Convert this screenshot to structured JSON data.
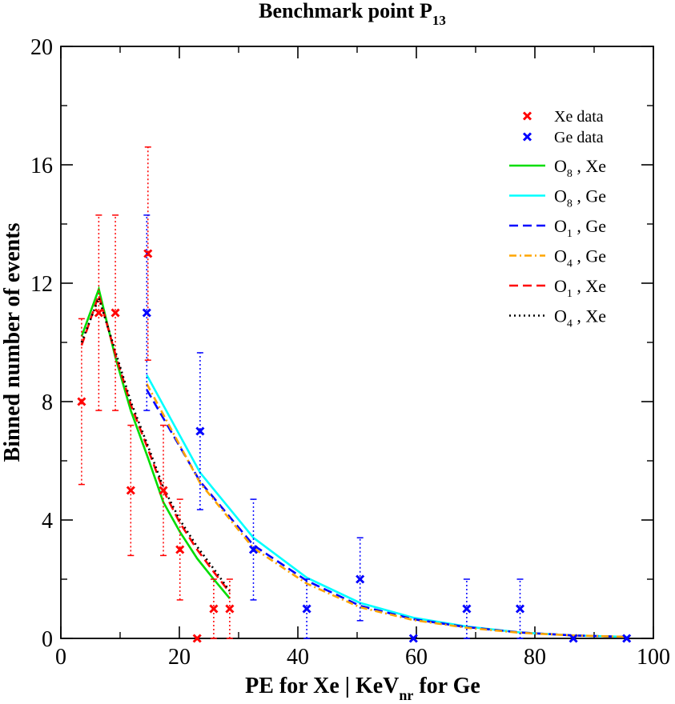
{
  "chart_data": {
    "type": "line",
    "title": {
      "main": "Benchmark point P",
      "sub": "13"
    },
    "xlabel": {
      "main": "PE for Xe | KeV",
      "sub": "nr",
      "tail": " for Ge"
    },
    "ylabel": "Binned number of events",
    "xlim": [
      0,
      100
    ],
    "ylim": [
      0,
      20
    ],
    "xticks": [
      0,
      20,
      40,
      60,
      80,
      100
    ],
    "yticks": [
      0,
      4,
      8,
      12,
      16,
      20
    ],
    "xtick_labels": [
      "0",
      "20",
      "40",
      "60",
      "80",
      "100"
    ],
    "ytick_labels": [
      "0",
      "4",
      "8",
      "12",
      "16",
      "20"
    ],
    "scatter": [
      {
        "name": "Xe data",
        "color": "#ff0000",
        "points": [
          {
            "x": 3.5,
            "y": 8,
            "lo": 5.2,
            "hi": 10.8
          },
          {
            "x": 6.4,
            "y": 11,
            "lo": 7.7,
            "hi": 14.3
          },
          {
            "x": 9.2,
            "y": 11,
            "lo": 7.7,
            "hi": 14.3
          },
          {
            "x": 11.8,
            "y": 5,
            "lo": 2.8,
            "hi": 7.2
          },
          {
            "x": 14.7,
            "y": 13,
            "lo": 9.4,
            "hi": 16.6
          },
          {
            "x": 17.3,
            "y": 5,
            "lo": 2.8,
            "hi": 7.2
          },
          {
            "x": 20.1,
            "y": 3,
            "lo": 1.3,
            "hi": 4.7
          },
          {
            "x": 23.0,
            "y": 0,
            "lo": 0,
            "hi": 0
          },
          {
            "x": 25.8,
            "y": 1,
            "lo": 0,
            "hi": 2
          },
          {
            "x": 28.5,
            "y": 1,
            "lo": 0,
            "hi": 2
          }
        ]
      },
      {
        "name": "Ge data",
        "color": "#0000ff",
        "points": [
          {
            "x": 14.5,
            "y": 11,
            "lo": 7.7,
            "hi": 14.3
          },
          {
            "x": 23.5,
            "y": 7,
            "lo": 4.35,
            "hi": 9.65
          },
          {
            "x": 32.5,
            "y": 3,
            "lo": 1.3,
            "hi": 4.7
          },
          {
            "x": 41.5,
            "y": 1,
            "lo": 0,
            "hi": 2
          },
          {
            "x": 50.5,
            "y": 2,
            "lo": 0.6,
            "hi": 3.4
          },
          {
            "x": 59.5,
            "y": 0,
            "lo": 0,
            "hi": 0
          },
          {
            "x": 68.5,
            "y": 1,
            "lo": 0,
            "hi": 2
          },
          {
            "x": 77.5,
            "y": 1,
            "lo": 0,
            "hi": 2
          },
          {
            "x": 86.5,
            "y": 0,
            "lo": 0,
            "hi": 0
          },
          {
            "x": 95.5,
            "y": 0,
            "lo": 0,
            "hi": 0
          }
        ]
      }
    ],
    "series": [
      {
        "name": "O8 , Xe",
        "op": "8",
        "target": "Xe",
        "color": "#00dd00",
        "style": "solid",
        "x": [
          3.5,
          6.4,
          9.2,
          11.8,
          14.7,
          17.3,
          20.1,
          23.0,
          25.8,
          28.5
        ],
        "values": [
          10.2,
          11.8,
          9.5,
          7.7,
          6.1,
          4.6,
          3.6,
          2.7,
          2.0,
          1.35
        ]
      },
      {
        "name": "O8 , Ge",
        "op": "8",
        "target": "Ge",
        "color": "#00ffff",
        "style": "solid",
        "x": [
          14.5,
          23.5,
          32.5,
          41.5,
          50.5,
          59.5,
          68.5,
          77.5,
          86.5,
          95.5
        ],
        "values": [
          8.9,
          5.6,
          3.4,
          2.05,
          1.2,
          0.7,
          0.4,
          0.2,
          0.1,
          0.05
        ]
      },
      {
        "name": "O1 , Ge",
        "op": "1",
        "target": "Ge",
        "color": "#0000ff",
        "style": "dash",
        "x": [
          14.5,
          23.5,
          32.5,
          41.5,
          50.5,
          59.5,
          68.5,
          77.5,
          86.5,
          95.5
        ],
        "values": [
          8.4,
          5.3,
          3.15,
          1.95,
          1.1,
          0.65,
          0.38,
          0.2,
          0.1,
          0.05
        ]
      },
      {
        "name": "O4 , Ge",
        "op": "4",
        "target": "Ge",
        "color": "#ffa500",
        "style": "dashdot",
        "x": [
          14.5,
          23.5,
          32.5,
          41.5,
          50.5,
          59.5,
          68.5,
          77.5,
          86.5,
          95.5
        ],
        "values": [
          8.6,
          5.25,
          3.05,
          1.85,
          1.05,
          0.62,
          0.36,
          0.19,
          0.1,
          0.05
        ]
      },
      {
        "name": "O1 , Xe",
        "op": "1",
        "target": "Xe",
        "color": "#ff0000",
        "style": "dash",
        "x": [
          3.5,
          6.4,
          9.2,
          11.8,
          14.7,
          17.3,
          20.1,
          23.0,
          25.8,
          28.5
        ],
        "values": [
          9.9,
          11.6,
          9.6,
          7.9,
          6.4,
          5.0,
          3.9,
          3.0,
          2.25,
          1.55
        ]
      },
      {
        "name": "O4 , Xe",
        "op": "4",
        "target": "Xe",
        "color": "#000000",
        "style": "dot",
        "x": [
          3.5,
          6.4,
          9.2,
          11.8,
          14.7,
          17.3,
          20.1,
          23.0,
          25.8,
          28.5
        ],
        "values": [
          10.0,
          11.5,
          9.7,
          8.0,
          6.5,
          5.1,
          4.0,
          3.1,
          2.35,
          1.6
        ]
      }
    ],
    "legend": {
      "placement": "top-right",
      "comma": " , "
    }
  }
}
